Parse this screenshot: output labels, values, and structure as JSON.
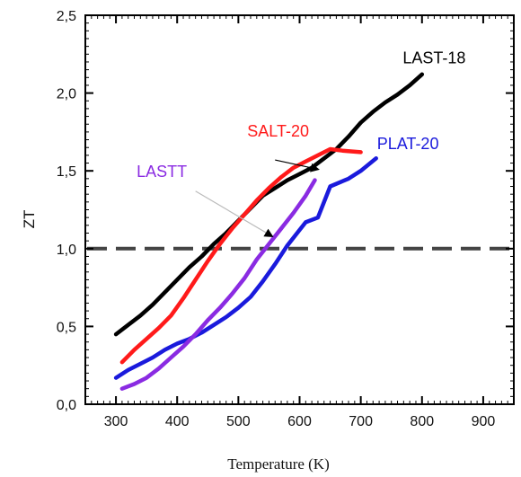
{
  "chart_data": {
    "type": "line",
    "xlabel": "Temperature (K)",
    "ylabel": "ZT",
    "xlim": [
      250,
      950
    ],
    "ylim": [
      0.0,
      2.5
    ],
    "x_ticks": [
      300,
      400,
      500,
      600,
      700,
      800,
      900
    ],
    "x_tick_labels": [
      "300",
      "400",
      "500",
      "600",
      "700",
      "800",
      "900"
    ],
    "y_ticks": [
      0.0,
      0.5,
      1.0,
      1.5,
      2.0,
      2.5
    ],
    "y_tick_labels": [
      "0,0",
      "0,5",
      "1,0",
      "1,5",
      "2,0",
      "2,5"
    ],
    "grid": false,
    "reference_line": {
      "y": 1.0,
      "style": "dashed",
      "color": "#444444"
    },
    "series": [
      {
        "name": "LAST-18",
        "color": "#000000",
        "label_anchor": {
          "x": 820,
          "y": 2.19
        },
        "points": [
          [
            300,
            0.45
          ],
          [
            320,
            0.51
          ],
          [
            340,
            0.57
          ],
          [
            360,
            0.64
          ],
          [
            380,
            0.72
          ],
          [
            400,
            0.8
          ],
          [
            420,
            0.88
          ],
          [
            440,
            0.95
          ],
          [
            460,
            1.03
          ],
          [
            480,
            1.1
          ],
          [
            500,
            1.18
          ],
          [
            520,
            1.26
          ],
          [
            540,
            1.34
          ],
          [
            560,
            1.39
          ],
          [
            580,
            1.44
          ],
          [
            600,
            1.48
          ],
          [
            620,
            1.52
          ],
          [
            640,
            1.58
          ],
          [
            660,
            1.64
          ],
          [
            680,
            1.72
          ],
          [
            700,
            1.81
          ],
          [
            720,
            1.88
          ],
          [
            740,
            1.94
          ],
          [
            760,
            1.99
          ],
          [
            780,
            2.05
          ],
          [
            800,
            2.12
          ]
        ]
      },
      {
        "name": "SALT-20",
        "color": "#ff1a1a",
        "label_anchor": {
          "x": 565,
          "y": 1.72
        },
        "points": [
          [
            310,
            0.27
          ],
          [
            330,
            0.35
          ],
          [
            350,
            0.42
          ],
          [
            370,
            0.49
          ],
          [
            390,
            0.57
          ],
          [
            410,
            0.68
          ],
          [
            430,
            0.8
          ],
          [
            450,
            0.92
          ],
          [
            470,
            1.03
          ],
          [
            490,
            1.13
          ],
          [
            510,
            1.22
          ],
          [
            530,
            1.31
          ],
          [
            550,
            1.39
          ],
          [
            570,
            1.46
          ],
          [
            590,
            1.52
          ],
          [
            610,
            1.56
          ],
          [
            630,
            1.6
          ],
          [
            650,
            1.64
          ],
          [
            670,
            1.63
          ],
          [
            700,
            1.62
          ]
        ]
      },
      {
        "name": "PLAT-20",
        "color": "#1a1adc",
        "label_anchor": {
          "x": 777,
          "y": 1.64
        },
        "points": [
          [
            300,
            0.17
          ],
          [
            320,
            0.22
          ],
          [
            340,
            0.26
          ],
          [
            360,
            0.3
          ],
          [
            380,
            0.35
          ],
          [
            400,
            0.39
          ],
          [
            420,
            0.42
          ],
          [
            440,
            0.46
          ],
          [
            460,
            0.51
          ],
          [
            480,
            0.56
          ],
          [
            500,
            0.62
          ],
          [
            520,
            0.69
          ],
          [
            540,
            0.79
          ],
          [
            560,
            0.9
          ],
          [
            580,
            1.02
          ],
          [
            600,
            1.12
          ],
          [
            610,
            1.17
          ],
          [
            630,
            1.2
          ],
          [
            650,
            1.4
          ],
          [
            680,
            1.45
          ],
          [
            700,
            1.5
          ],
          [
            725,
            1.58
          ]
        ]
      },
      {
        "name": "LASTT",
        "color": "#8a2be2",
        "label_anchor": {
          "x": 375,
          "y": 1.46
        },
        "points": [
          [
            310,
            0.1
          ],
          [
            330,
            0.13
          ],
          [
            350,
            0.17
          ],
          [
            370,
            0.23
          ],
          [
            390,
            0.3
          ],
          [
            410,
            0.37
          ],
          [
            430,
            0.45
          ],
          [
            450,
            0.54
          ],
          [
            470,
            0.62
          ],
          [
            490,
            0.71
          ],
          [
            510,
            0.81
          ],
          [
            530,
            0.93
          ],
          [
            550,
            1.03
          ],
          [
            570,
            1.13
          ],
          [
            590,
            1.23
          ],
          [
            610,
            1.34
          ],
          [
            625,
            1.44
          ]
        ]
      }
    ],
    "annotations": [
      {
        "text": "",
        "from": {
          "x": 560,
          "y": 1.57
        },
        "to": {
          "x": 630,
          "y": 1.51
        },
        "arrowhead": "end"
      },
      {
        "text": "",
        "from": {
          "x": 430,
          "y": 1.37
        },
        "to": {
          "x": 555,
          "y": 1.08
        },
        "arrowhead": "end"
      }
    ]
  }
}
